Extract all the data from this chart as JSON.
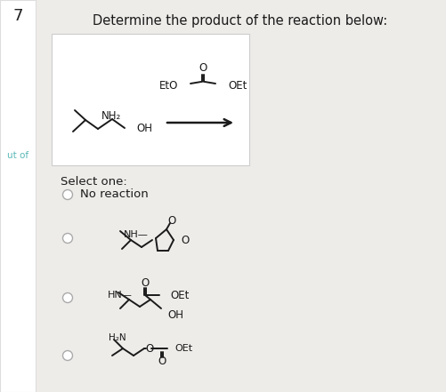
{
  "title": "Determine the product of the reaction below:",
  "question_num": "7",
  "bg_color": "#eeece9",
  "panel_bg": "#ffffff",
  "text_color": "#1a1a1a",
  "select_text": "Select one:",
  "option0": "No reaction",
  "sidebar_bg": "#ffffff",
  "sidebar_border": "#dddddd",
  "box_border": "#cccccc",
  "radio_color": "#aaaaaa",
  "font_size_title": 10.5,
  "font_size_body": 9,
  "font_size_chem": 8,
  "left_label": "ut of",
  "left_label_color": "#5bb8b8"
}
